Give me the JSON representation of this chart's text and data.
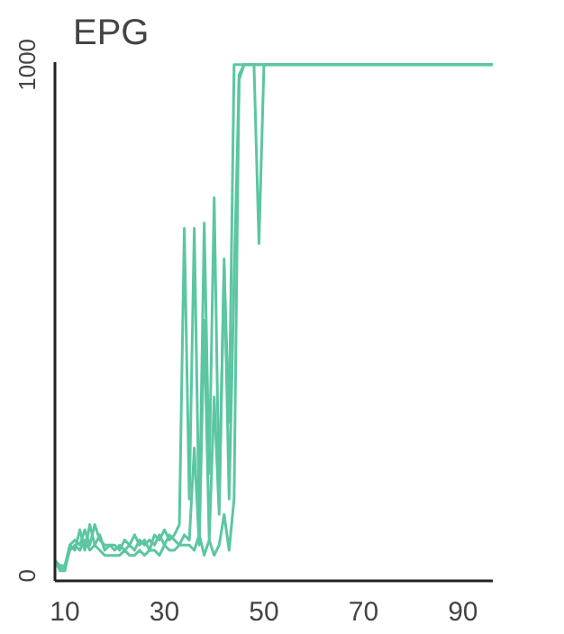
{
  "chart_data": {
    "type": "line",
    "title": "EPG",
    "xlim": [
      8,
      96
    ],
    "ylim": [
      -10,
      1005
    ],
    "xticks": [
      10,
      30,
      50,
      70,
      90
    ],
    "yticks": [
      0,
      1000
    ],
    "grid": false,
    "marker": "none",
    "line_style": "solid",
    "series": [
      {
        "color": "#5cc6a2",
        "x": [
          8,
          9,
          10,
          11,
          12,
          13,
          14,
          15,
          16,
          17,
          18,
          19,
          20,
          21,
          22,
          23,
          24,
          25,
          26,
          27,
          28,
          29,
          30,
          31,
          32,
          33,
          34,
          35,
          36,
          37,
          38,
          39,
          40,
          41,
          42,
          43,
          44,
          45,
          96
        ],
        "values": [
          30,
          10,
          10,
          60,
          50,
          90,
          50,
          100,
          60,
          80,
          50,
          60,
          60,
          50,
          70,
          60,
          80,
          60,
          70,
          50,
          80,
          70,
          90,
          70,
          80,
          100,
          680,
          150,
          680,
          100,
          690,
          200,
          740,
          150,
          600,
          300,
          1000,
          1000,
          1000
        ]
      },
      {
        "color": "#5cc6a2",
        "x": [
          8,
          9,
          10,
          11,
          12,
          13,
          14,
          15,
          16,
          17,
          18,
          19,
          20,
          21,
          22,
          23,
          24,
          25,
          26,
          27,
          28,
          29,
          30,
          31,
          32,
          33,
          34,
          35,
          36,
          37,
          38,
          39,
          40,
          41,
          42,
          43,
          44,
          45,
          46,
          96
        ],
        "values": [
          30,
          20,
          20,
          60,
          70,
          60,
          90,
          60,
          100,
          70,
          60,
          60,
          50,
          60,
          50,
          60,
          50,
          70,
          60,
          70,
          60,
          80,
          60,
          80,
          70,
          60,
          80,
          70,
          250,
          60,
          500,
          70,
          350,
          120,
          620,
          150,
          580,
          970,
          1000,
          1000
        ]
      },
      {
        "color": "#5cc6a2",
        "x": [
          8,
          9,
          10,
          11,
          12,
          13,
          14,
          15,
          16,
          17,
          18,
          19,
          20,
          21,
          22,
          23,
          24,
          25,
          26,
          27,
          28,
          29,
          30,
          31,
          32,
          33,
          34,
          35,
          36,
          37,
          38,
          39,
          40,
          41,
          42,
          43,
          44,
          45,
          46,
          47,
          48,
          49,
          50,
          96
        ],
        "values": [
          30,
          15,
          15,
          50,
          60,
          50,
          70,
          50,
          60,
          50,
          40,
          40,
          40,
          40,
          50,
          40,
          40,
          50,
          40,
          50,
          50,
          40,
          60,
          50,
          50,
          60,
          60,
          60,
          50,
          80,
          40,
          70,
          40,
          60,
          120,
          50,
          150,
          980,
          1000,
          1000,
          1000,
          650,
          1000,
          1000
        ]
      }
    ]
  }
}
